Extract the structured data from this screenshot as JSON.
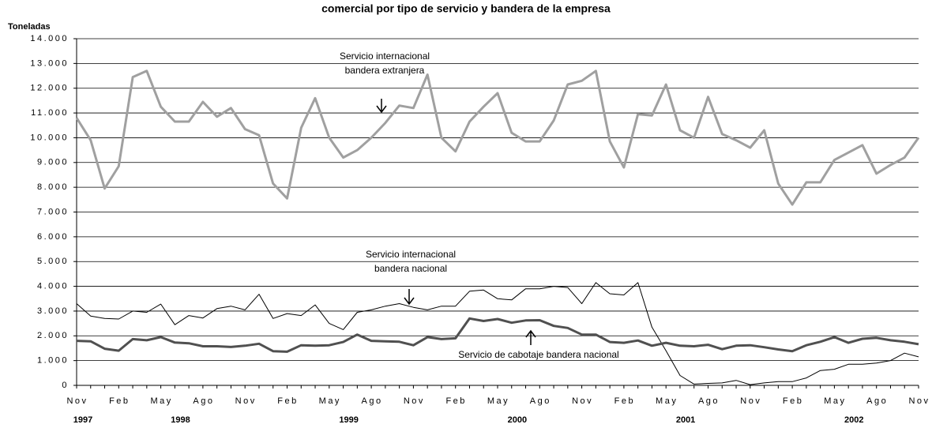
{
  "chart_data": {
    "type": "line",
    "title": "comercial por tipo de servicio y bandera de la empresa",
    "ylabel": "Toneladas",
    "categories": [
      "Nov",
      null,
      null,
      "Feb",
      null,
      null,
      "May",
      null,
      null,
      "Ago",
      null,
      null,
      "Nov",
      null,
      null,
      "Feb",
      null,
      null,
      "May",
      null,
      null,
      "Ago",
      null,
      null,
      "Nov",
      null,
      null,
      "Feb",
      null,
      null,
      "May",
      null,
      null,
      "Ago",
      null,
      null,
      "Nov",
      null,
      null,
      "Feb",
      null,
      null,
      "May",
      null,
      null,
      "Ago",
      null,
      null,
      "Nov",
      null,
      null,
      "Feb",
      null,
      null,
      "May",
      null,
      null,
      "Ago",
      null,
      null,
      "Nov"
    ],
    "years": [
      "1997",
      "1998",
      "1999",
      "2000",
      "2001",
      "2002"
    ],
    "ylim": [
      0,
      14000
    ],
    "yticks": [
      0,
      {
        "value": 1000,
        "label": "1.000"
      },
      {
        "value": 2000,
        "label": "2.000"
      },
      {
        "value": 3000,
        "label": "3.000"
      },
      {
        "value": 4000,
        "label": "4.000"
      },
      {
        "value": 5000,
        "label": "5.000"
      },
      {
        "value": 6000,
        "label": "6.000"
      },
      {
        "value": 7000,
        "label": "7.000"
      },
      {
        "value": 8000,
        "label": "8.000"
      },
      {
        "value": 9000,
        "label": "9.000"
      },
      {
        "value": 10000,
        "label": "10.000"
      },
      {
        "value": 11000,
        "label": "11.000"
      },
      {
        "value": 12000,
        "label": "12.000"
      },
      {
        "value": 13000,
        "label": "13.000"
      },
      {
        "value": 14000,
        "label": "14.000"
      }
    ],
    "grid": true,
    "series": [
      {
        "name": [
          "Servicio internacional",
          "bandera extranjera"
        ],
        "color": "#a0a0a0",
        "width": 3,
        "values": [
          10800,
          9900,
          7950,
          8850,
          12450,
          12700,
          11250,
          10650,
          10650,
          11450,
          10850,
          11200,
          10350,
          10100,
          8150,
          7550,
          10400,
          11600,
          10000,
          9200,
          9500,
          10000,
          10600,
          11300,
          11200,
          12550,
          10000,
          9450,
          10650,
          11250,
          11800,
          10200,
          9850,
          9850,
          10700,
          12150,
          12300,
          12700,
          9850,
          8800,
          10950,
          10900,
          12150,
          10300,
          10000,
          11650,
          10150,
          9900,
          9600,
          10300,
          8150,
          7300,
          8200,
          8200,
          9100,
          9400,
          9700,
          8550,
          8900,
          9200,
          10000
        ]
      },
      {
        "name": [
          "Servicio internacional",
          "bandera nacional"
        ],
        "color": "#000000",
        "width": 1,
        "values": [
          3300,
          2800,
          2700,
          2680,
          3000,
          2950,
          3280,
          2450,
          2820,
          2720,
          3100,
          3200,
          3050,
          3680,
          2700,
          2900,
          2820,
          3250,
          2500,
          2250,
          2950,
          3050,
          3200,
          3300,
          3150,
          3050,
          3200,
          3200,
          3800,
          3850,
          3500,
          3450,
          3900,
          3900,
          4000,
          3950,
          3300,
          4150,
          3700,
          3650,
          4150,
          2350,
          1400,
          400,
          50,
          80,
          100,
          200,
          30,
          100,
          150,
          150,
          300,
          600,
          650,
          850,
          850,
          900,
          1000,
          1300,
          1150
        ]
      },
      {
        "name": [
          "Servicio de cabotaje bandera nacional"
        ],
        "color": "#505050",
        "width": 3,
        "values": [
          1800,
          1780,
          1480,
          1400,
          1870,
          1820,
          1950,
          1730,
          1700,
          1580,
          1580,
          1550,
          1600,
          1680,
          1380,
          1360,
          1620,
          1600,
          1620,
          1750,
          2050,
          1800,
          1780,
          1760,
          1620,
          1950,
          1870,
          1900,
          2700,
          2600,
          2680,
          2530,
          2620,
          2630,
          2400,
          2320,
          2050,
          2050,
          1750,
          1720,
          1810,
          1600,
          1720,
          1600,
          1580,
          1640,
          1460,
          1600,
          1620,
          1540,
          1450,
          1380,
          1620,
          1760,
          1950,
          1720,
          1880,
          1920,
          1820,
          1760,
          1660
        ]
      }
    ]
  }
}
